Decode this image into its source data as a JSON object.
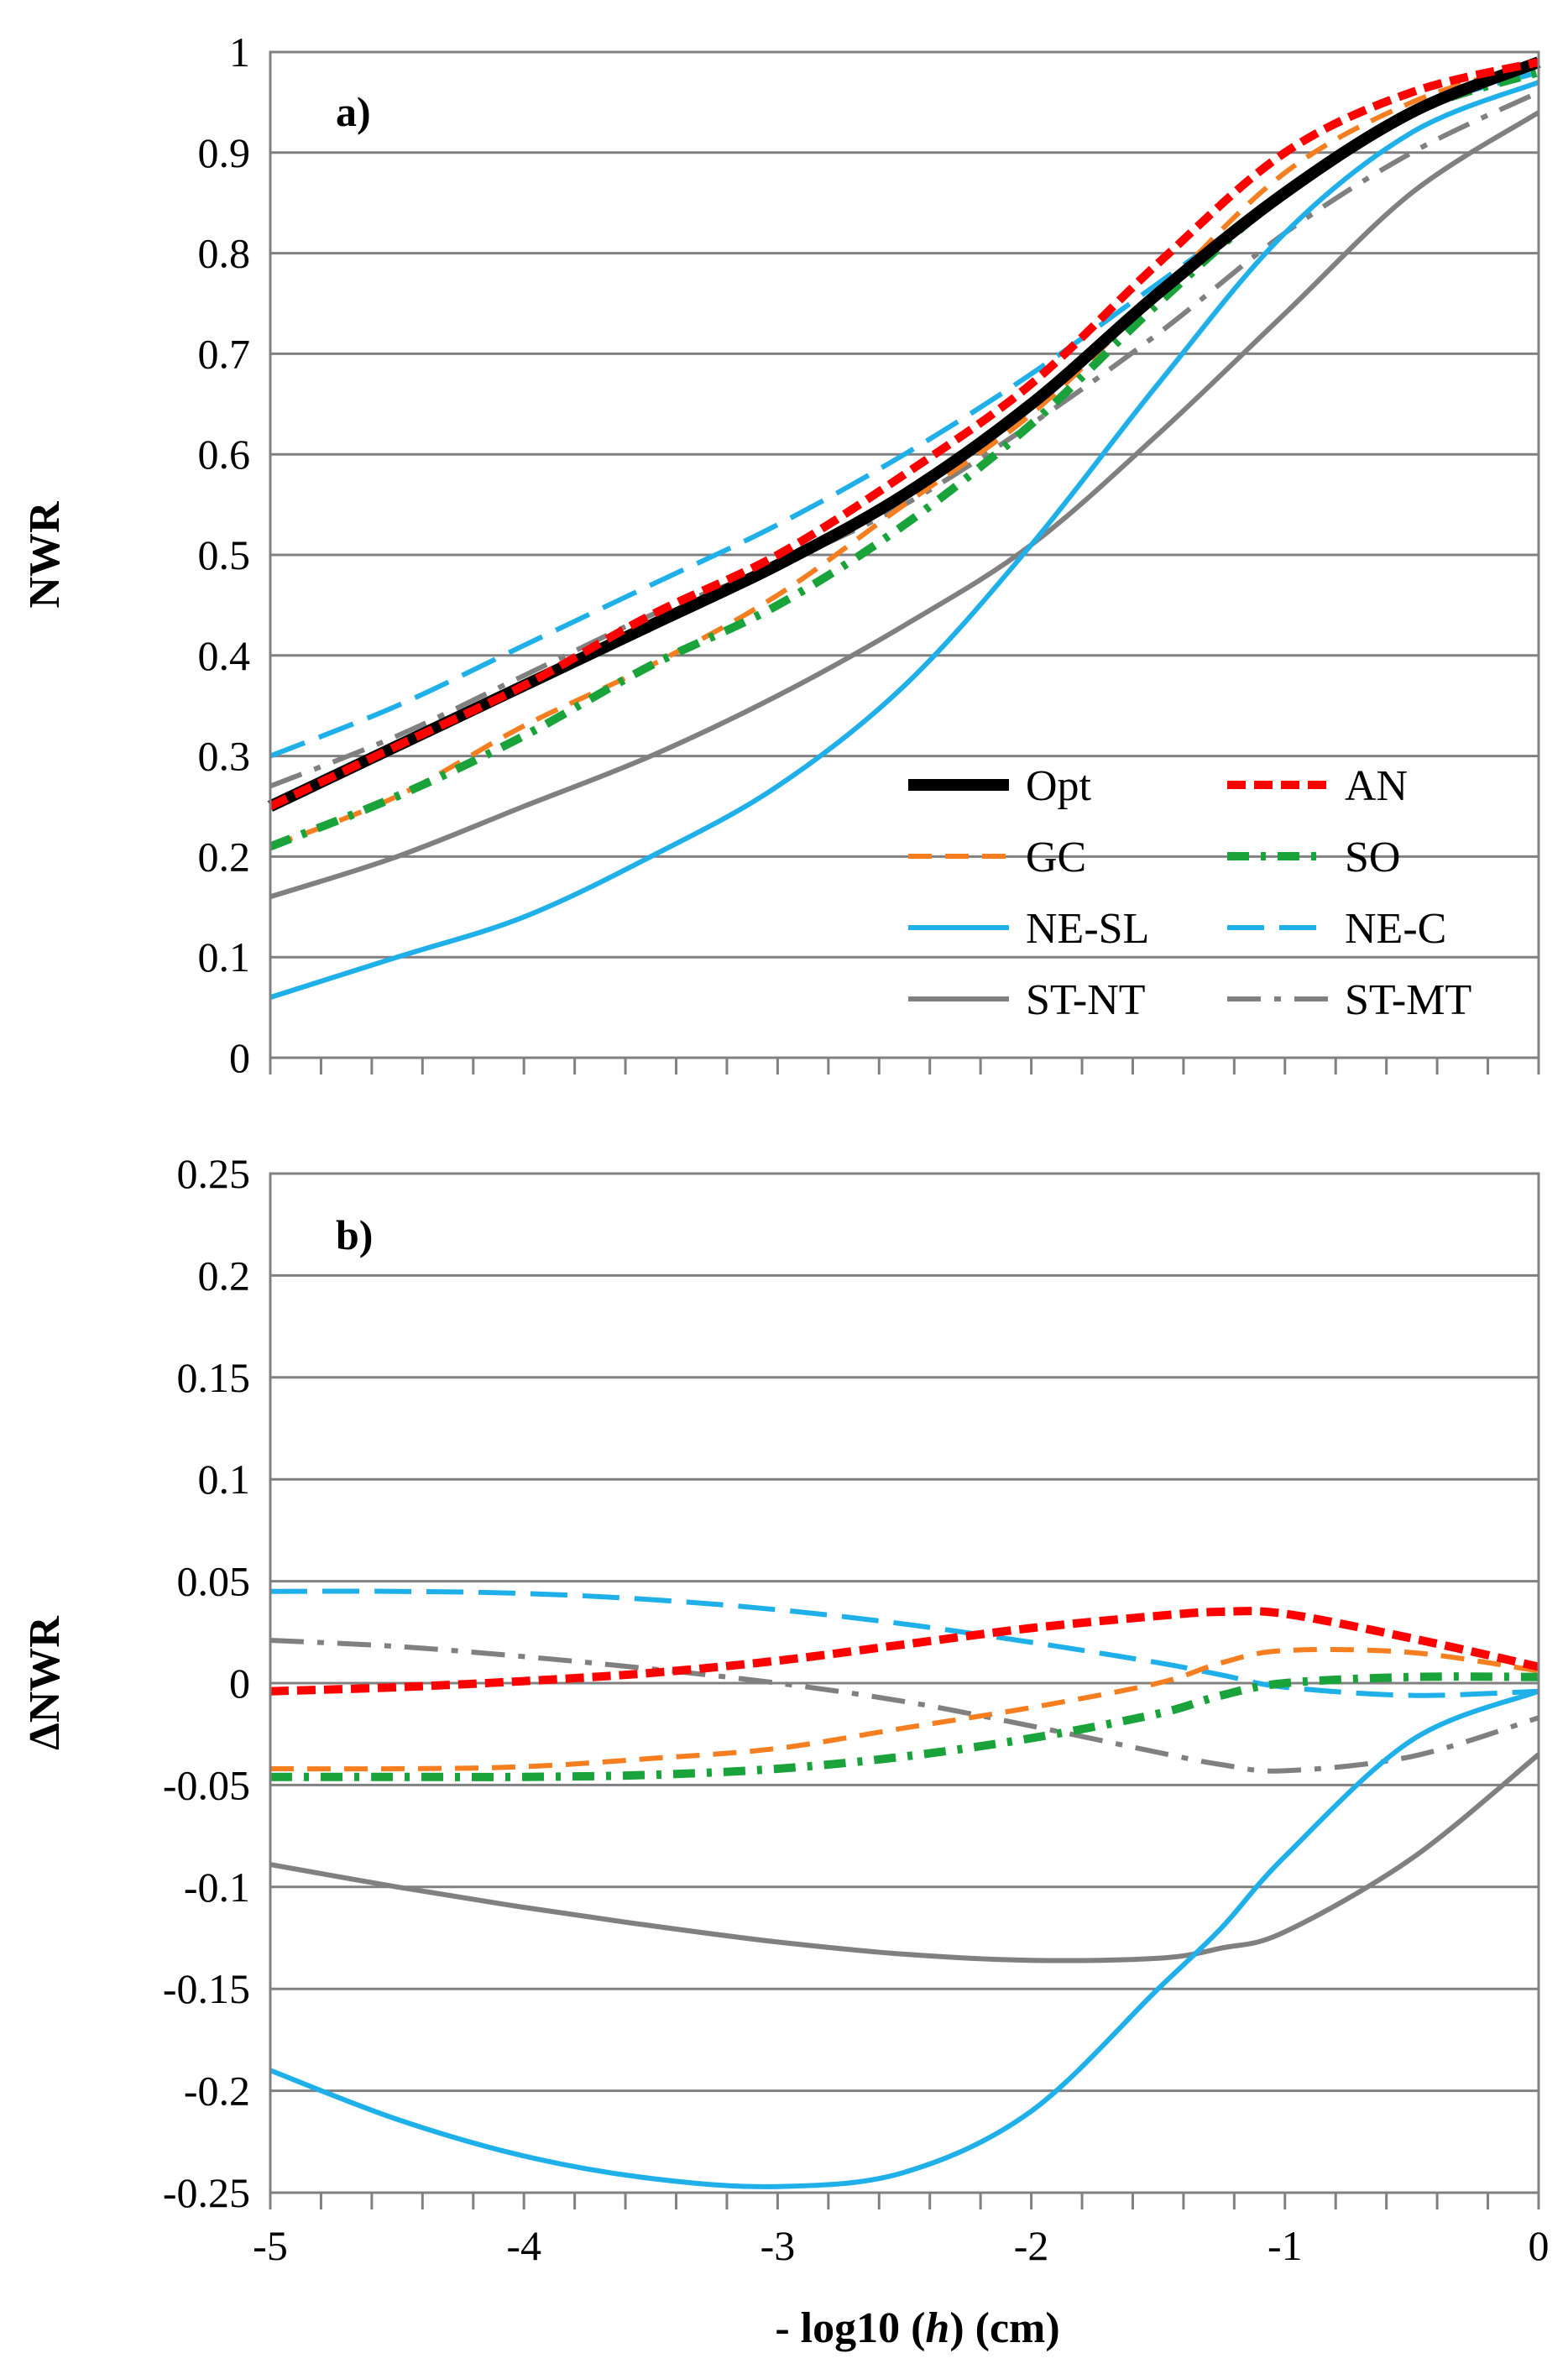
{
  "chart_data": [
    {
      "type": "line",
      "panel_label": "a)",
      "xlabel": "",
      "ylabel": "NWR",
      "xlim": [
        -5,
        0
      ],
      "ylim": [
        0,
        1
      ],
      "xticks": [
        -5,
        -4.8,
        -4.6,
        -4.4,
        -4.2,
        -4,
        -3.8,
        -3.6,
        -3.4,
        -3.2,
        -3,
        -2.8,
        -2.6,
        -2.4,
        -2.2,
        -2,
        -1.8,
        -1.6,
        -1.4,
        -1.2,
        -1,
        -0.8,
        -0.6,
        -0.4,
        -0.2,
        0
      ],
      "yticks": [
        0,
        0.1,
        0.2,
        0.3,
        0.4,
        0.5,
        0.6,
        0.7,
        0.8,
        0.9,
        1
      ],
      "ytick_labels": [
        "0",
        "0.1",
        "0.2",
        "0.3",
        "0.4",
        "0.5",
        "0.6",
        "0.7",
        "0.8",
        "0.9",
        "1"
      ],
      "grid": "horizontal",
      "legend_position": "bottom-right",
      "x": [
        -5,
        -4.5,
        -4,
        -3.5,
        -3,
        -2.5,
        -2,
        -1.5,
        -1,
        -0.5,
        0
      ],
      "series": [
        {
          "name": "Opt",
          "color": "#000000",
          "style": "solid-thick",
          "values": [
            0.25,
            0.31,
            0.37,
            0.43,
            0.49,
            0.56,
            0.65,
            0.76,
            0.86,
            0.94,
            0.99
          ]
        },
        {
          "name": "AN",
          "color": "#ff0000",
          "style": "short-dash",
          "values": [
            0.25,
            0.31,
            0.37,
            0.44,
            0.5,
            0.58,
            0.67,
            0.79,
            0.9,
            0.96,
            0.99
          ]
        },
        {
          "name": "GC",
          "color": "#f57f20",
          "style": "dash",
          "values": [
            0.21,
            0.26,
            0.33,
            0.39,
            0.46,
            0.55,
            0.64,
            0.76,
            0.88,
            0.95,
            0.99
          ]
        },
        {
          "name": "SO",
          "color": "#1aa33b",
          "style": "dash-dot",
          "values": [
            0.21,
            0.26,
            0.32,
            0.39,
            0.45,
            0.53,
            0.63,
            0.75,
            0.86,
            0.94,
            0.98
          ]
        },
        {
          "name": "NE-SL",
          "color": "#1fb0ea",
          "style": "solid",
          "values": [
            0.06,
            0.1,
            0.14,
            0.2,
            0.27,
            0.37,
            0.51,
            0.67,
            0.82,
            0.92,
            0.97
          ]
        },
        {
          "name": "NE-C",
          "color": "#1fb0ea",
          "style": "long-dash",
          "values": [
            0.3,
            0.35,
            0.41,
            0.47,
            0.53,
            0.6,
            0.68,
            0.77,
            0.86,
            0.94,
            0.98
          ]
        },
        {
          "name": "ST-NT",
          "color": "#808080",
          "style": "solid",
          "values": [
            0.16,
            0.2,
            0.25,
            0.3,
            0.36,
            0.43,
            0.51,
            0.62,
            0.74,
            0.86,
            0.94
          ]
        },
        {
          "name": "ST-MT",
          "color": "#808080",
          "style": "long-dash-dot",
          "values": [
            0.27,
            0.32,
            0.38,
            0.44,
            0.49,
            0.55,
            0.63,
            0.72,
            0.82,
            0.9,
            0.96
          ]
        }
      ]
    },
    {
      "type": "line",
      "panel_label": "b)",
      "xlabel": "- log10 (h) (cm)",
      "xlabel_parts": [
        "- log10 (",
        "h",
        ") (cm)"
      ],
      "ylabel": "ΔNWR",
      "xlim": [
        -5,
        0
      ],
      "ylim": [
        -0.25,
        0.25
      ],
      "xticks": [
        -5,
        -4.8,
        -4.6,
        -4.4,
        -4.2,
        -4,
        -3.8,
        -3.6,
        -3.4,
        -3.2,
        -3,
        -2.8,
        -2.6,
        -2.4,
        -2.2,
        -2,
        -1.8,
        -1.6,
        -1.4,
        -1.2,
        -1,
        -0.8,
        -0.6,
        -0.4,
        -0.2,
        0
      ],
      "xtick_label_values": [
        -5,
        -4,
        -3,
        -2,
        -1,
        0
      ],
      "xtick_labels": [
        "-5",
        "-4",
        "-3",
        "-2",
        "-1",
        "0"
      ],
      "yticks": [
        -0.25,
        -0.2,
        -0.15,
        -0.1,
        -0.05,
        0,
        0.05,
        0.1,
        0.15,
        0.2,
        0.25
      ],
      "ytick_labels": [
        "-0.25",
        "-0.2",
        "-0.15",
        "-0.1",
        "-0.05",
        "0",
        "0.05",
        "0.1",
        "0.15",
        "0.2",
        "0.25"
      ],
      "grid": "horizontal",
      "x": [
        -5,
        -4.5,
        -4,
        -3.5,
        -3,
        -2.5,
        -2,
        -1.5,
        -1.25,
        -1,
        -0.5,
        0
      ],
      "series": [
        {
          "name": "AN",
          "color": "#ff0000",
          "style": "short-dash",
          "values": [
            -0.004,
            -0.002,
            0.001,
            0.005,
            0.011,
            0.019,
            0.027,
            0.033,
            0.035,
            0.034,
            0.022,
            0.008
          ]
        },
        {
          "name": "GC",
          "color": "#f57f20",
          "style": "dash",
          "values": [
            -0.042,
            -0.042,
            -0.041,
            -0.037,
            -0.032,
            -0.022,
            -0.012,
            0.0,
            0.01,
            0.016,
            0.015,
            0.006
          ]
        },
        {
          "name": "SO",
          "color": "#1aa33b",
          "style": "dash-dot",
          "values": [
            -0.046,
            -0.046,
            -0.046,
            -0.045,
            -0.042,
            -0.036,
            -0.027,
            -0.015,
            -0.006,
            0.0,
            0.003,
            0.003
          ]
        },
        {
          "name": "NE-SL",
          "color": "#1fb0ea",
          "style": "solid",
          "values": [
            -0.19,
            -0.214,
            -0.232,
            -0.243,
            -0.247,
            -0.24,
            -0.21,
            -0.15,
            -0.12,
            -0.085,
            -0.028,
            -0.004
          ]
        },
        {
          "name": "NE-C",
          "color": "#1fb0ea",
          "style": "long-dash",
          "values": [
            0.045,
            0.045,
            0.044,
            0.041,
            0.036,
            0.029,
            0.02,
            0.01,
            0.004,
            -0.002,
            -0.006,
            -0.004
          ]
        },
        {
          "name": "ST-NT",
          "color": "#808080",
          "style": "solid",
          "values": [
            -0.089,
            -0.1,
            -0.11,
            -0.119,
            -0.127,
            -0.133,
            -0.136,
            -0.135,
            -0.13,
            -0.122,
            -0.086,
            -0.035
          ]
        },
        {
          "name": "ST-MT",
          "color": "#808080",
          "style": "long-dash-dot",
          "values": [
            0.021,
            0.018,
            0.013,
            0.007,
            0.0,
            -0.009,
            -0.021,
            -0.034,
            -0.04,
            -0.043,
            -0.036,
            -0.017
          ]
        }
      ]
    }
  ]
}
